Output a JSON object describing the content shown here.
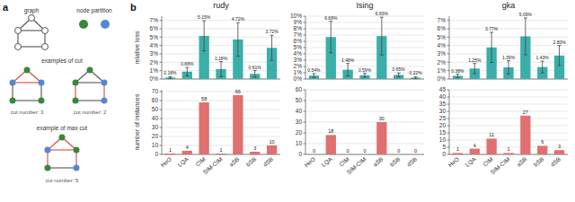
{
  "chart_data": [
    {
      "type": "diagram",
      "title": "a",
      "annotations": [
        "graph",
        "node partition",
        "examples of cut",
        "cut number: 3",
        "cut number: 2",
        "example of max cut",
        "cut number: 5"
      ],
      "colors": [
        "#3a873a",
        "#5588cc",
        "#555555",
        "#dd4444"
      ]
    },
    {
      "type": "bar",
      "title": "rudy",
      "annotations": [
        "b"
      ],
      "ylabel": "relative loss",
      "categories": [
        "HeO",
        "LQA",
        "CIM",
        "SIM-CIM",
        "aSB",
        "bSB",
        "dSB"
      ],
      "values": [
        0.18,
        0.88,
        5.15,
        1.18,
        4.72,
        0.61,
        3.72
      ],
      "errors": [
        0.1,
        0.5,
        1.8,
        0.9,
        2.0,
        0.4,
        1.5
      ],
      "value_labels": [
        "0.18%",
        "0.88%",
        "5.15%",
        "1.18%",
        "4.72%",
        "0.61%",
        "3.72%"
      ],
      "color": "#3aafa9",
      "ylim": [
        0,
        7.5
      ],
      "yticks": [
        {
          "value": 0,
          "label": "0%"
        },
        {
          "value": 1,
          "label": "1%"
        },
        {
          "value": 2,
          "label": "2%"
        },
        {
          "value": 3,
          "label": "3%"
        },
        {
          "value": 4,
          "label": "4%"
        },
        {
          "value": 5,
          "label": "5%"
        },
        {
          "value": 6,
          "label": "6%"
        },
        {
          "value": 7,
          "label": "7%"
        }
      ],
      "grid": true,
      "data_labels": true,
      "tick_labels": "y"
    },
    {
      "type": "bar",
      "ylabel": "number of instances",
      "categories": [
        "HeO",
        "LQA",
        "CIM",
        "SIM-CIM",
        "aSB",
        "bSB",
        "dSB"
      ],
      "values": [
        1,
        4,
        58,
        1,
        66,
        3,
        10
      ],
      "color": "#e07070",
      "ylim": [
        0,
        72
      ],
      "yticks": [
        0,
        10,
        20,
        30,
        40,
        50,
        60,
        70
      ],
      "grid": true,
      "data_labels": true
    },
    {
      "type": "bar",
      "title": "Ising",
      "categories": [
        "HeO",
        "LQA",
        "CIM",
        "SIM-CIM",
        "aSB",
        "bSB",
        "dSB"
      ],
      "values": [
        0.54,
        6.68,
        1.48,
        0.59,
        6.83,
        0.65,
        0.22
      ],
      "errors": [
        0.3,
        2.5,
        1.0,
        0.3,
        3.0,
        0.3,
        0.15
      ],
      "value_labels": [
        "0.54%",
        "6.68%",
        "1.48%",
        "0.59%",
        "6.83%",
        "0.65%",
        "0.22%"
      ],
      "color": "#3aafa9",
      "ylim": [
        0,
        10
      ],
      "yticks": [
        {
          "value": 0,
          "label": "0%"
        },
        {
          "value": 1,
          "label": "1%"
        },
        {
          "value": 2,
          "label": "2%"
        },
        {
          "value": 3,
          "label": "3%"
        },
        {
          "value": 4,
          "label": "4%"
        },
        {
          "value": 5,
          "label": "5%"
        },
        {
          "value": 6,
          "label": "6%"
        },
        {
          "value": 7,
          "label": "7%"
        },
        {
          "value": 8,
          "label": "8%"
        },
        {
          "value": 9,
          "label": "9%"
        },
        {
          "value": 10,
          "label": "10%"
        }
      ],
      "grid": true,
      "data_labels": true,
      "tick_labels": "y"
    },
    {
      "type": "bar",
      "categories": [
        "HeO",
        "LQA",
        "CIM",
        "SIM-CIM",
        "aSB",
        "bSB",
        "dSB"
      ],
      "values": [
        0,
        18,
        0,
        0,
        30,
        0,
        0
      ],
      "color": "#e07070",
      "ylim": [
        0,
        60
      ],
      "yticks": [
        0,
        10,
        20,
        30,
        40,
        50,
        60
      ],
      "grid": true,
      "data_labels": true
    },
    {
      "type": "bar",
      "title": "gka",
      "categories": [
        "HeO",
        "LQA",
        "CIM",
        "SIM-CIM",
        "aSB",
        "bSB",
        "dSB"
      ],
      "values": [
        0.38,
        1.25,
        3.77,
        1.39,
        5.09,
        1.43,
        2.8
      ],
      "errors": [
        0.2,
        0.6,
        1.8,
        0.8,
        2.2,
        0.7,
        1.2
      ],
      "value_labels": [
        "0.38%",
        "1.25%",
        "3.77%",
        "1.39%",
        "5.09%",
        "1.43%",
        "2.80%"
      ],
      "color": "#3aafa9",
      "ylim": [
        0,
        7.5
      ],
      "yticks": [
        {
          "value": 0,
          "label": "0%"
        },
        {
          "value": 1,
          "label": "1%"
        },
        {
          "value": 2,
          "label": "2%"
        },
        {
          "value": 3,
          "label": "3%"
        },
        {
          "value": 4,
          "label": "4%"
        },
        {
          "value": 5,
          "label": "5%"
        },
        {
          "value": 6,
          "label": "6%"
        },
        {
          "value": 7,
          "label": "7%"
        }
      ],
      "grid": true,
      "data_labels": true,
      "tick_labels": "y"
    },
    {
      "type": "bar",
      "categories": [
        "HeO",
        "LQA",
        "CIM",
        "SIM-CIM",
        "aSB",
        "bSB",
        "dSB"
      ],
      "values": [
        1,
        4,
        11,
        1,
        27,
        6,
        3
      ],
      "color": "#e07070",
      "ylim": [
        0,
        45
      ],
      "yticks": [
        0,
        5,
        10,
        15,
        20,
        25,
        30,
        35,
        40,
        45
      ],
      "grid": true,
      "data_labels": true
    }
  ]
}
